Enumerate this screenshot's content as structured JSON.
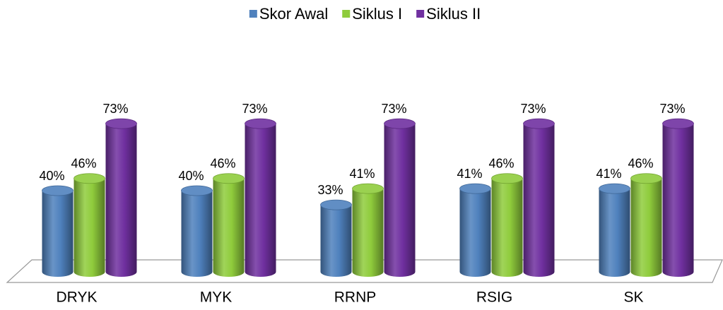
{
  "chart_data": {
    "type": "bar",
    "categories": [
      "DRYK",
      "MYK",
      "RRNP",
      "RSIG",
      "SK"
    ],
    "series": [
      {
        "name": "Skor Awal",
        "color": "#4f81bd",
        "values": [
          40,
          40,
          33,
          41,
          41
        ],
        "value_labels": [
          "40%",
          "40%",
          "33%",
          "41%",
          "41%"
        ]
      },
      {
        "name": "Siklus I",
        "color": "#8fcc3c",
        "values": [
          46,
          46,
          41,
          46,
          46
        ],
        "value_labels": [
          "46%",
          "46%",
          "41%",
          "46%",
          "46%"
        ]
      },
      {
        "name": "Siklus II",
        "color": "#7030a0",
        "values": [
          73,
          73,
          73,
          73,
          73
        ],
        "value_labels": [
          "73%",
          "73%",
          "73%",
          "73%",
          "73%"
        ]
      }
    ],
    "ylim": [
      0,
      80
    ],
    "legend": "top"
  }
}
